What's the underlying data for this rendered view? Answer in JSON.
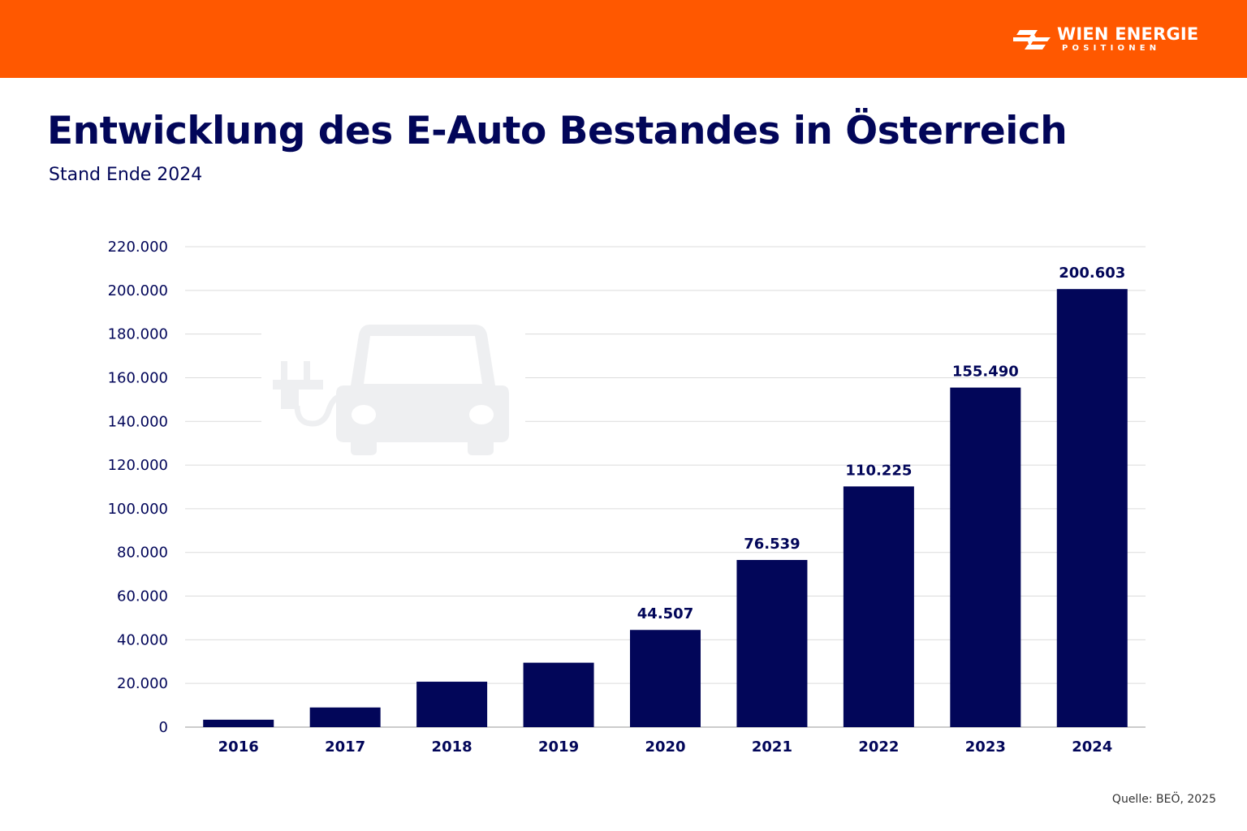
{
  "header": {
    "brand": "WIEN ENERGIE",
    "brand_sub": "POSITIONEN",
    "brand_color": "#ff5800"
  },
  "title": "Entwicklung des E-Auto Bestandes in Österreich",
  "subtitle": "Stand Ende 2024",
  "source": "Quelle: BEÖ, 2025",
  "icon": "electric-car-icon",
  "chart_data": {
    "type": "bar",
    "categories": [
      "2016",
      "2017",
      "2018",
      "2019",
      "2020",
      "2021",
      "2022",
      "2023",
      "2024"
    ],
    "values": [
      3400,
      9000,
      20800,
      29500,
      44507,
      76539,
      110225,
      155490,
      200603
    ],
    "data_labels": [
      null,
      null,
      null,
      null,
      "44.507",
      "76.539",
      "110.225",
      "155.490",
      "200.603"
    ],
    "ylim": [
      0,
      220000
    ],
    "yticks": [
      0,
      20000,
      40000,
      60000,
      80000,
      100000,
      120000,
      140000,
      160000,
      180000,
      200000,
      220000
    ],
    "ytick_labels": [
      "0",
      "20.000",
      "40.000",
      "60.000",
      "80.000",
      "100.000",
      "120.000",
      "140.000",
      "160.000",
      "180.000",
      "200.000",
      "220.000"
    ],
    "grid": true,
    "bar_color": "#020659",
    "xlabel": "",
    "ylabel": ""
  }
}
